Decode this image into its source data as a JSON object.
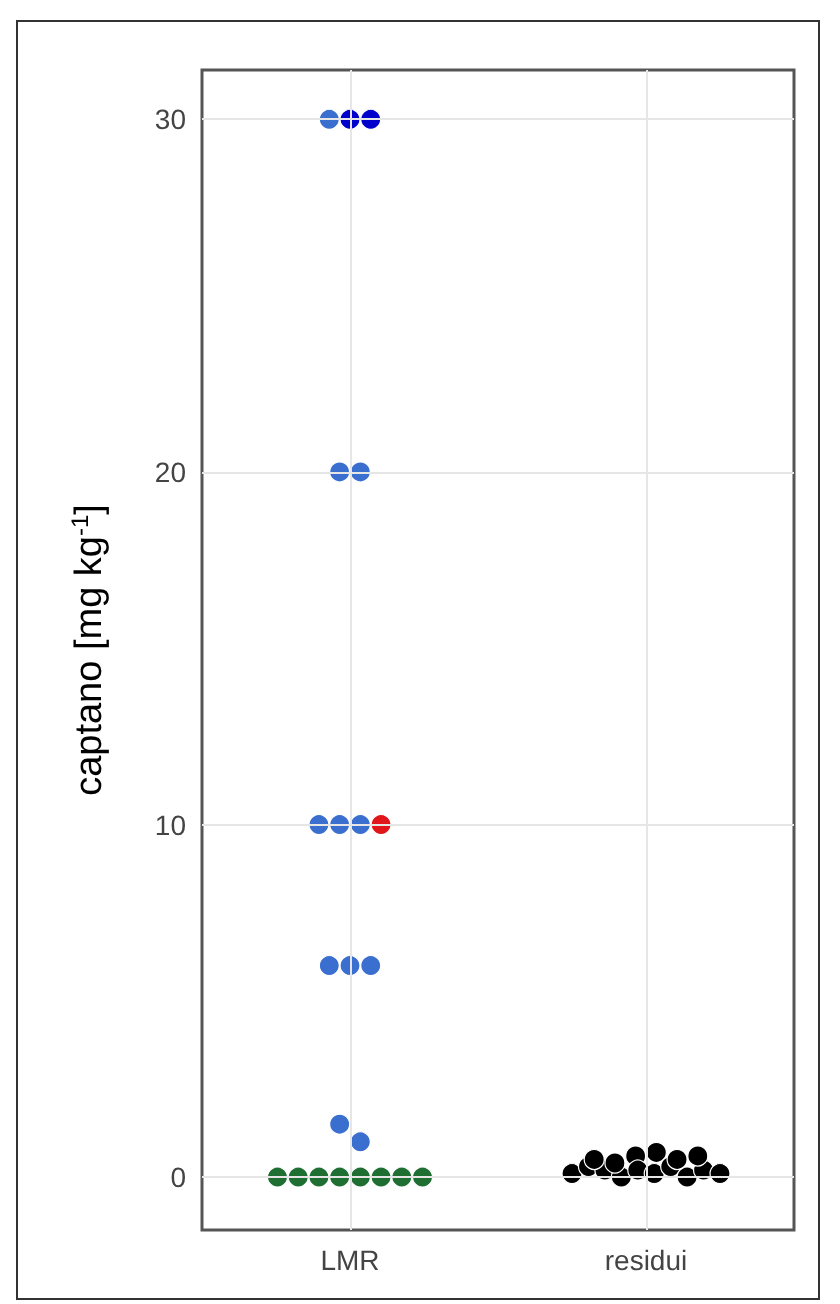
{
  "chart_data": {
    "type": "scatter",
    "ylabel": "captano [mg kg$^{-1}$]",
    "categories": [
      "LMR",
      "residui"
    ],
    "ylim": [
      -1.5,
      31.4
    ],
    "yticks": [
      0,
      10,
      20,
      30
    ],
    "grid": true,
    "marker": "circle",
    "series": [
      {
        "color": "#1f6e32",
        "x": [
          "LMR",
          "LMR",
          "LMR",
          "LMR",
          "LMR",
          "LMR",
          "LMR",
          "LMR"
        ],
        "values": [
          0,
          0,
          0,
          0,
          0,
          0,
          0,
          0
        ]
      },
      {
        "color": "#000000",
        "x": [
          "residui",
          "residui",
          "residui",
          "residui",
          "residui",
          "residui",
          "residui",
          "residui",
          "residui",
          "residui",
          "residui",
          "residui",
          "residui",
          "residui",
          "residui",
          "residui"
        ],
        "values": [
          0.1,
          0.3,
          0.2,
          0.5,
          0,
          0.4,
          0.6,
          0.2,
          0.1,
          0.7,
          0.3,
          0,
          0.2,
          0.5,
          0.1,
          0.6
        ]
      },
      {
        "color": "#3a6fd0",
        "x": [
          "LMR",
          "LMR",
          "LMR",
          "LMR",
          "LMR",
          "LMR",
          "LMR",
          "LMR",
          "LMR",
          "LMR",
          "LMR"
        ],
        "values": [
          30,
          20,
          20,
          10,
          10,
          10,
          6,
          6,
          6,
          1.5,
          1
        ]
      },
      {
        "color": "#0000cc",
        "x": [
          "LMR",
          "LMR"
        ],
        "values": [
          30,
          30
        ]
      },
      {
        "color": "#e0161b",
        "x": [
          "LMR"
        ],
        "values": [
          10
        ]
      }
    ]
  }
}
